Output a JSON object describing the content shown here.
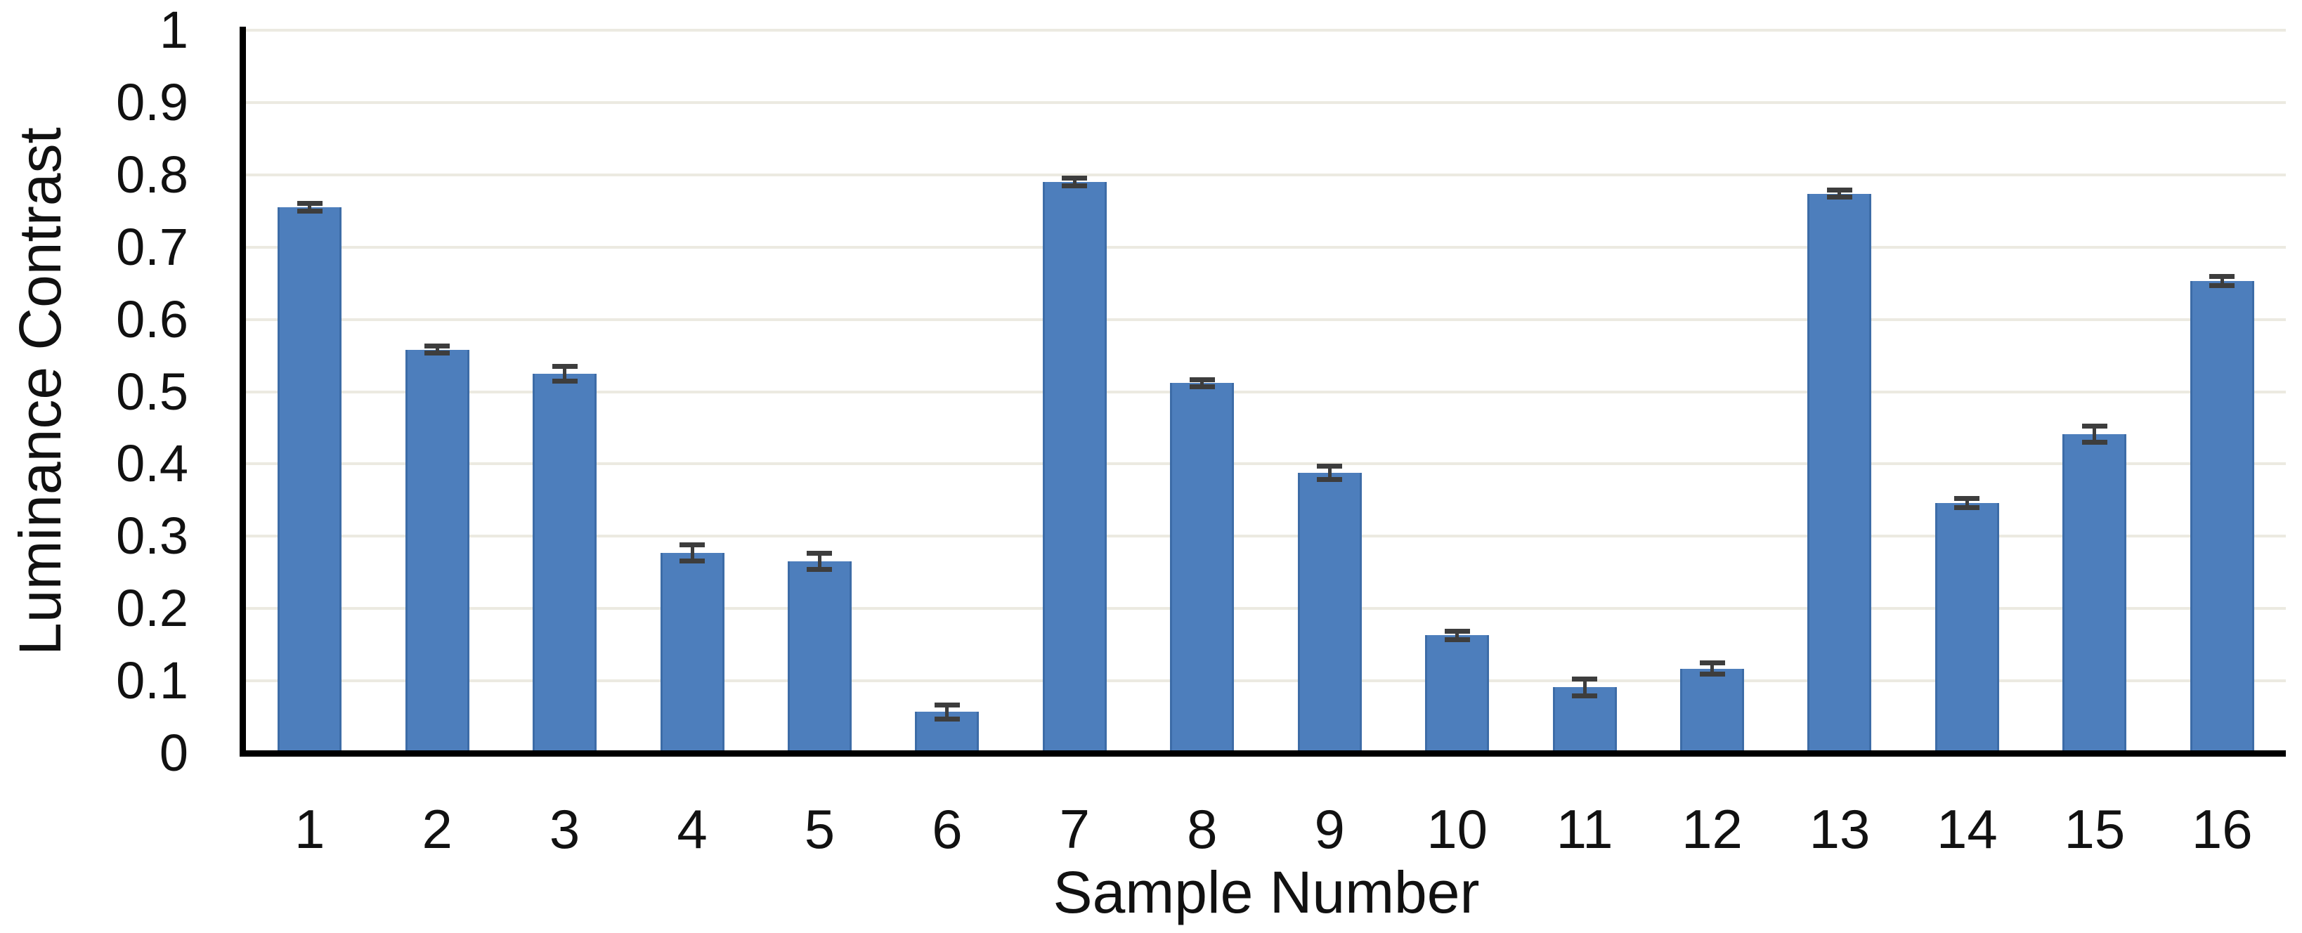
{
  "figure": {
    "background": "#ffffff"
  },
  "chart_data": {
    "type": "bar",
    "title": "",
    "xlabel": "Sample Number",
    "ylabel": "Luminance Contrast",
    "categories": [
      "1",
      "2",
      "3",
      "4",
      "5",
      "6",
      "7",
      "8",
      "9",
      "10",
      "11",
      "12",
      "13",
      "14",
      "15",
      "16"
    ],
    "series": [
      {
        "name": "Luminance Contrast",
        "values": [
          0.755,
          0.558,
          0.525,
          0.277,
          0.265,
          0.057,
          0.79,
          0.512,
          0.388,
          0.163,
          0.091,
          0.117,
          0.774,
          0.346,
          0.441,
          0.653
        ],
        "error_bars": [
          0.005,
          0.005,
          0.01,
          0.011,
          0.011,
          0.01,
          0.005,
          0.005,
          0.009,
          0.006,
          0.012,
          0.008,
          0.005,
          0.006,
          0.011,
          0.006
        ]
      }
    ],
    "ylim": [
      0,
      1
    ],
    "ytick_values": [
      0,
      0.1,
      0.2,
      0.3,
      0.4,
      0.5,
      0.6,
      0.7,
      0.8,
      0.9,
      1
    ],
    "ytick_labels": [
      "0",
      "0.1",
      "0.2",
      "0.3",
      "0.4",
      "0.5",
      "0.6",
      "0.7",
      "0.8",
      "0.9",
      "1"
    ],
    "grid": "horizontal",
    "legend": "none",
    "colors": {
      "bar_fill": "#4d7ebc",
      "bar_edge": "#3d6ca7",
      "error_bar": "#3d3d3d",
      "gridline": "#eceae1",
      "axis_line": "#000000",
      "text": "#111111"
    }
  }
}
